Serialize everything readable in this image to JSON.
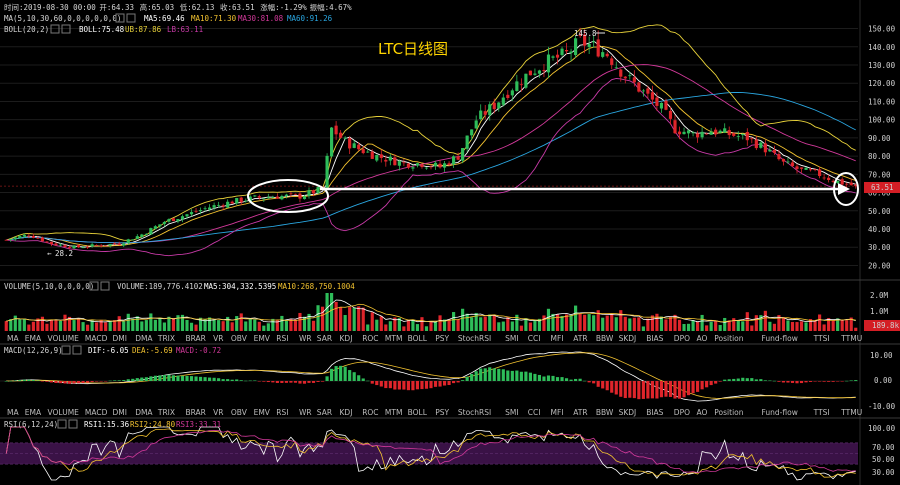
{
  "colors": {
    "bg": "#000000",
    "up": "#2ebd5a",
    "down": "#e0252b",
    "ma5": "#ffffff",
    "ma10": "#f2c230",
    "ma30": "#d2399a",
    "ma60": "#2aa6e0",
    "boll": "#cfcfcf",
    "ub": "#e8d23a",
    "lb": "#c83aa7",
    "price_tag": "#d41e25",
    "vol_tag": "#d41e25",
    "rsi_band": "#3a1246"
  },
  "header": {
    "row1": [
      "时间:2019-08-30 00:00",
      "开:64.33",
      "高:65.03",
      "低:62.13",
      "收:63.51",
      "涨幅:-1.29%",
      "振幅:4.67%"
    ],
    "ma_label": "MA(5,10,30,60,0,0,0,0,0,0)",
    "ma_values": [
      {
        "label": "MA5:69.46"
      },
      {
        "label": "MA10:71.30"
      },
      {
        "label": "MA30:81.08"
      },
      {
        "label": "MA60:91.26"
      }
    ],
    "boll_label": "BOLL(20,2)",
    "boll_values": [
      {
        "label": "BOLL:75.48"
      },
      {
        "label": "UB:87.86"
      },
      {
        "label": "LB:63.11"
      }
    ]
  },
  "main_title": "LTC日线图",
  "price_axis": {
    "ticks": [
      "150.00",
      "140.00",
      "130.00",
      "120.00",
      "110.00",
      "100.00",
      "90.00",
      "80.00",
      "70.00",
      "60.00",
      "50.00",
      "40.00",
      "30.00",
      "20.00"
    ],
    "current_price": "63.51"
  },
  "annotations": {
    "high": "145.8",
    "low": "28.2"
  },
  "volume_panel": {
    "label": "VOLUME(5,10,0,0,0,0)",
    "values": [
      "VOLUME:189,776.4102",
      "MA5:304,332.5395",
      "MA10:268,750.1004"
    ],
    "axis": [
      "2.0M",
      "1.0M"
    ],
    "current": "189.8k"
  },
  "indicator_tabs": [
    "MA",
    "EMA",
    "VOLUME",
    "MACD",
    "DMI",
    "DMA",
    "TRIX",
    "BRAR",
    "VR",
    "OBV",
    "EMV",
    "RSI",
    "WR",
    "SAR",
    "KDJ",
    "ROC",
    "MTM",
    "BOLL",
    "PSY",
    "StochRSI",
    "SMI",
    "CCI",
    "MFI",
    "ATR",
    "BBW",
    "SKDJ",
    "BIAS",
    "DPO",
    "AO",
    "Position",
    "Fund-flow",
    "TTSI",
    "TTMU"
  ],
  "macd_panel": {
    "label": "MACD(12,26,9)",
    "values": [
      "DIF:-6.05",
      "DEA:-5.69",
      "MACD:-0.72"
    ],
    "axis": [
      "10.00",
      "0.00",
      "-10.00"
    ]
  },
  "rsi_panel": {
    "label": "RSI(6,12,24)",
    "values": [
      "RSI1:15.36",
      "RSI2:24.80",
      "RSI3:33.31"
    ],
    "axis": [
      "100.00",
      "70.00",
      "50.00",
      "30.00"
    ]
  },
  "chart_data": {
    "type": "candlestick",
    "title": "LTC日线图",
    "ylim": [
      15,
      155
    ],
    "close_path": [
      [
        0,
        34
      ],
      [
        5,
        37
      ],
      [
        10,
        32
      ],
      [
        15,
        30
      ],
      [
        20,
        31
      ],
      [
        25,
        32
      ],
      [
        30,
        37
      ],
      [
        35,
        44
      ],
      [
        40,
        48
      ],
      [
        45,
        52
      ],
      [
        50,
        55
      ],
      [
        55,
        57
      ],
      [
        60,
        58
      ],
      [
        65,
        58
      ],
      [
        70,
        62
      ],
      [
        72,
        95
      ],
      [
        75,
        88
      ],
      [
        78,
        84
      ],
      [
        82,
        80
      ],
      [
        85,
        78
      ],
      [
        88,
        76
      ],
      [
        92,
        76
      ],
      [
        96,
        74
      ],
      [
        100,
        80
      ],
      [
        104,
        100
      ],
      [
        108,
        108
      ],
      [
        112,
        118
      ],
      [
        116,
        126
      ],
      [
        120,
        132
      ],
      [
        124,
        136
      ],
      [
        127,
        143
      ],
      [
        130,
        140
      ],
      [
        133,
        136
      ],
      [
        137,
        124
      ],
      [
        141,
        115
      ],
      [
        145,
        106
      ],
      [
        148,
        95
      ],
      [
        152,
        92
      ],
      [
        156,
        94
      ],
      [
        160,
        92
      ],
      [
        164,
        90
      ],
      [
        168,
        84
      ],
      [
        172,
        76
      ],
      [
        176,
        72
      ],
      [
        180,
        70
      ],
      [
        184,
        66
      ],
      [
        188,
        63.5
      ]
    ],
    "series": [
      {
        "name": "MA5",
        "last": 69.46
      },
      {
        "name": "MA10",
        "last": 71.3
      },
      {
        "name": "MA30",
        "last": 81.08
      },
      {
        "name": "MA60",
        "last": 91.26
      },
      {
        "name": "BOLL",
        "last": 75.48
      },
      {
        "name": "UB",
        "last": 87.86
      },
      {
        "name": "LB",
        "last": 63.11
      }
    ]
  }
}
